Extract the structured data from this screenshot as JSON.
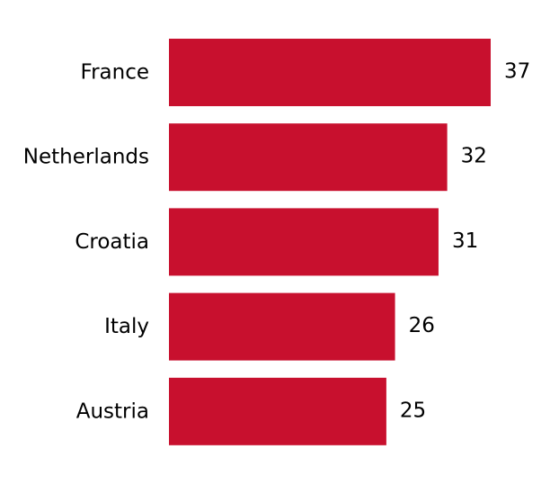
{
  "chart_data": {
    "type": "bar",
    "orientation": "horizontal",
    "categories": [
      "France",
      "Netherlands",
      "Croatia",
      "Italy",
      "Austria"
    ],
    "values": [
      37,
      32,
      31,
      26,
      25
    ],
    "title": "",
    "xlabel": "",
    "ylabel": "",
    "xlim": [
      0,
      37
    ],
    "grid": false,
    "legend": "none",
    "bar_color": "#C8102E"
  }
}
